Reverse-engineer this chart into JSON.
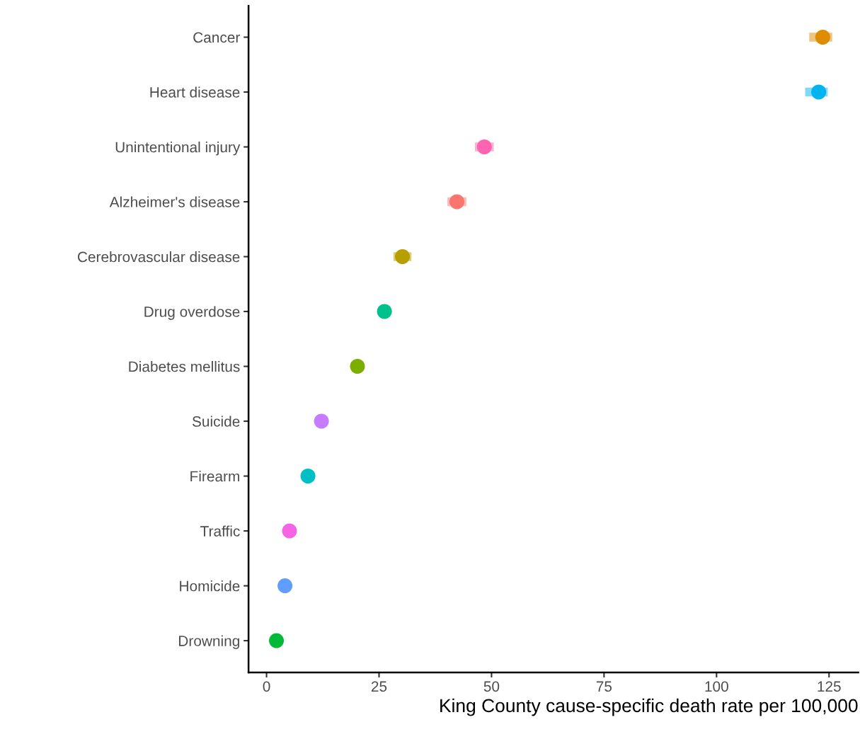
{
  "chart_data": {
    "type": "scatter",
    "orientation": "horizontal",
    "xlabel": "King County cause-specific death rate per 100,000",
    "categories": [
      "Cancer",
      "Heart disease",
      "Unintentional injury",
      "Alzheimer's disease",
      "Cerebrovascular disease",
      "Drug overdose",
      "Diabetes mellitus",
      "Suicide",
      "Firearm",
      "Traffic",
      "Homicide",
      "Drowning"
    ],
    "values": [
      123.6,
      122.7,
      48.4,
      42.3,
      30.2,
      26.2,
      20.2,
      12.2,
      9.2,
      5.1,
      4.1,
      2.2
    ],
    "errors": [
      [
        120.6,
        125.7
      ],
      [
        119.7,
        124.7
      ],
      [
        46.3,
        50.5
      ],
      [
        40.2,
        44.4
      ],
      [
        28.2,
        32.2
      ],
      null,
      null,
      null,
      null,
      null,
      null,
      null
    ],
    "colors": [
      "#de8c00",
      "#00b4f0",
      "#ff64b0",
      "#f8766d",
      "#b79f00",
      "#00c08b",
      "#7cae00",
      "#c77cff",
      "#00bfc4",
      "#f564e3",
      "#619cff",
      "#00ba38"
    ],
    "xlim": [
      -4,
      131.5
    ],
    "xticks": [
      0,
      25,
      50,
      75,
      100,
      125
    ],
    "grid": false,
    "legend": false,
    "marker": "circle"
  }
}
